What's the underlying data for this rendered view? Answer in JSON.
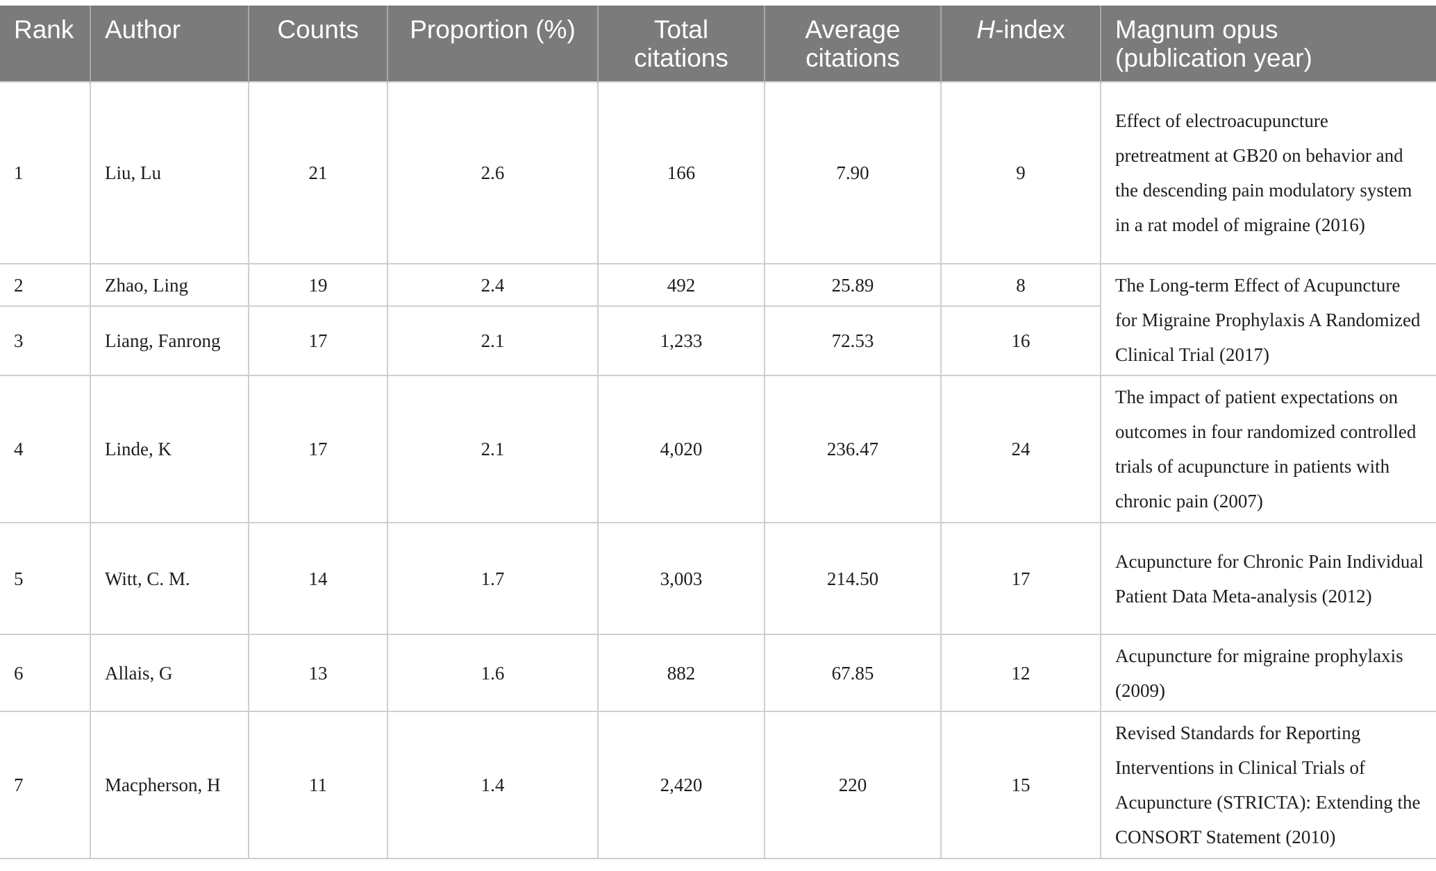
{
  "table": {
    "headers": {
      "rank": "Rank",
      "author": "Author",
      "counts": "Counts",
      "proportion": "Proportion (%)",
      "total_citations_1": "Total",
      "total_citations_2": "citations",
      "average_citations_1": "Average",
      "average_citations_2": "citations",
      "h_index_letter": "H",
      "h_index_rest": "-index",
      "magnum_opus_1": "Magnum opus",
      "magnum_opus_2": "(publication year)"
    },
    "rows": [
      {
        "rank": "1",
        "author": "Liu, Lu",
        "counts": "21",
        "proportion": "2.6",
        "total_citations": "166",
        "average_citations": "7.90",
        "h_index": "9",
        "magnum_opus": "Effect of electroacupuncture pretreatment at GB20 on behavior and the descending pain modulatory system in a rat model of migraine (2016)"
      },
      {
        "rank": "2",
        "author": "Zhao, Ling",
        "counts": "19",
        "proportion": "2.4",
        "total_citations": "492",
        "average_citations": "25.89",
        "h_index": "8",
        "magnum_opus": "The Long-term Effect of Acupuncture for Migraine Prophylaxis A Randomized Clinical Trial (2017)"
      },
      {
        "rank": "3",
        "author": "Liang, Fanrong",
        "counts": "17",
        "proportion": "2.1",
        "total_citations": "1,233",
        "average_citations": "72.53",
        "h_index": "16"
      },
      {
        "rank": "4",
        "author": "Linde, K",
        "counts": "17",
        "proportion": "2.1",
        "total_citations": "4,020",
        "average_citations": "236.47",
        "h_index": "24",
        "magnum_opus": "The impact of patient expectations on outcomes in four randomized controlled trials of acupuncture in patients with chronic pain (2007)"
      },
      {
        "rank": "5",
        "author": "Witt, C. M.",
        "counts": "14",
        "proportion": "1.7",
        "total_citations": "3,003",
        "average_citations": "214.50",
        "h_index": "17",
        "magnum_opus": "Acupuncture for Chronic Pain Individual Patient Data Meta-analysis (2012)"
      },
      {
        "rank": "6",
        "author": "Allais, G",
        "counts": "13",
        "proportion": "1.6",
        "total_citations": "882",
        "average_citations": "67.85",
        "h_index": "12",
        "magnum_opus": "Acupuncture for migraine prophylaxis (2009)"
      },
      {
        "rank": "7",
        "author": "Macpherson, H",
        "counts": "11",
        "proportion": "1.4",
        "total_citations": "2,420",
        "average_citations": "220",
        "h_index": "15",
        "magnum_opus": "Revised Standards for Reporting Interventions in Clinical Trials of Acupuncture (STRICTA): Extending the CONSORT Statement (2010)"
      }
    ]
  },
  "colors": {
    "header_background": "#7a7b7a",
    "header_text": "#ffffff",
    "grid_line": "#cfcfcf",
    "body_text": "#1e1e1e"
  }
}
